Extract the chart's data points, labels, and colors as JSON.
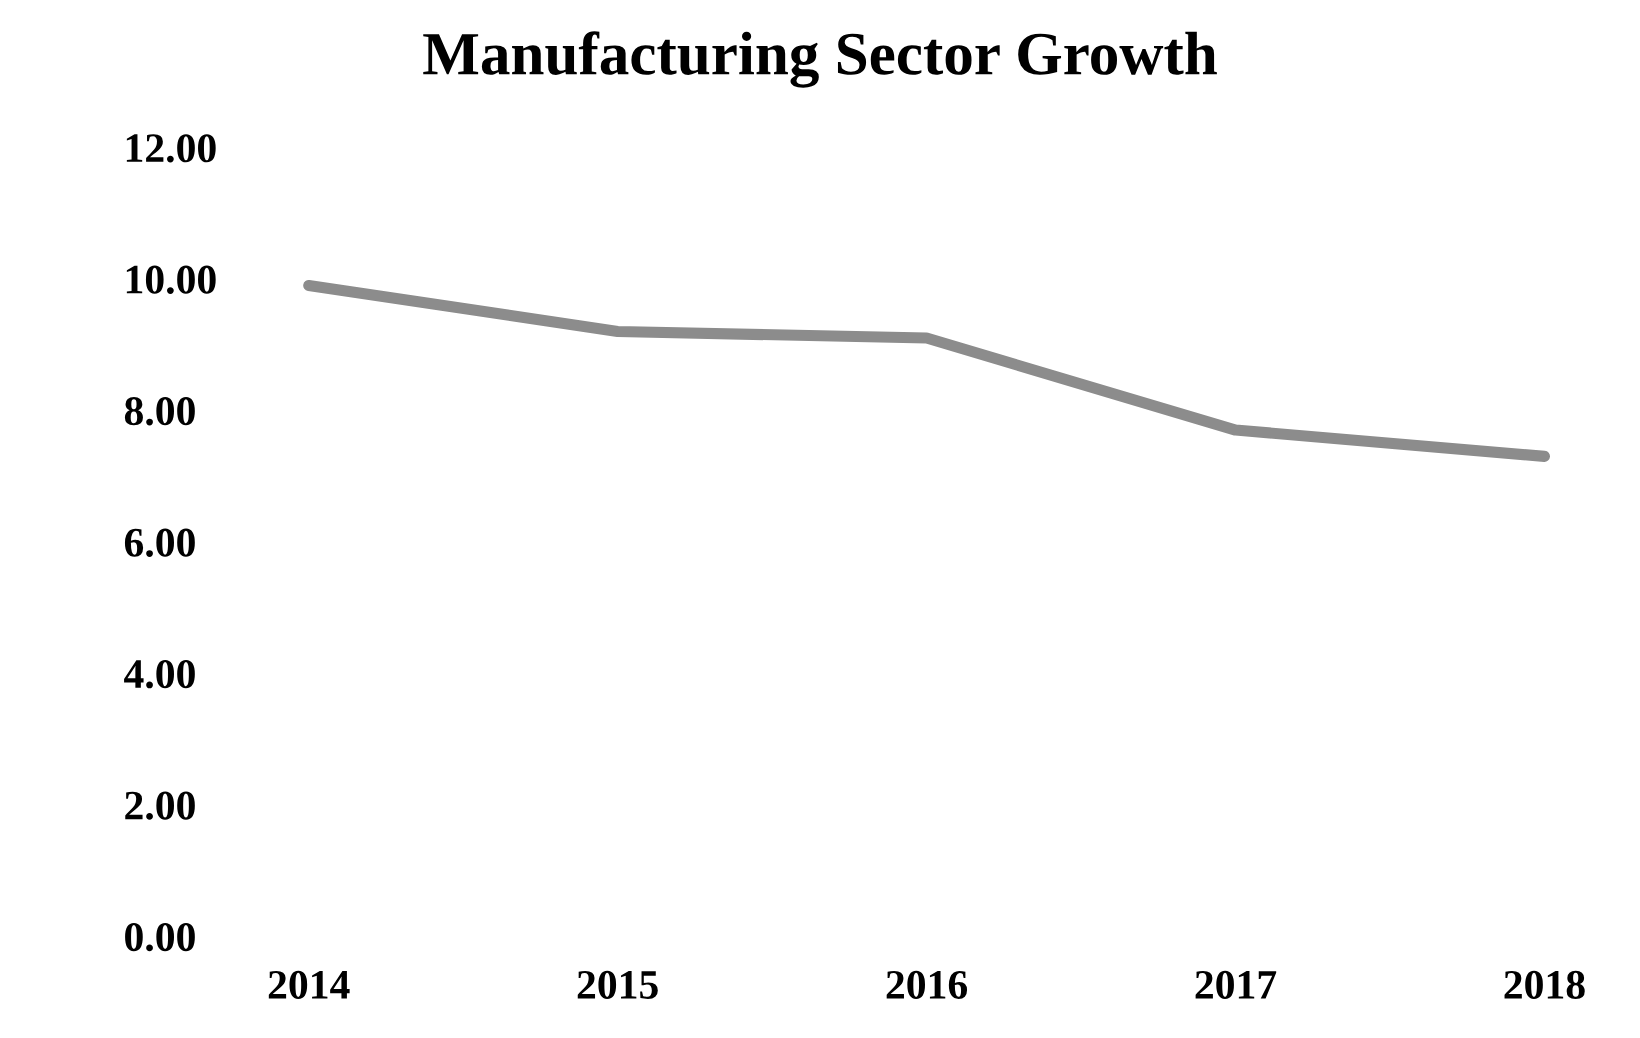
{
  "chart_data": {
    "type": "line",
    "title": "Manufacturing Sector Growth",
    "categories": [
      "2014",
      "2015",
      "2016",
      "2017",
      "2018"
    ],
    "series": [
      {
        "color": "#8c8c8c",
        "values": [
          9.9,
          9.2,
          9.1,
          7.7,
          7.3
        ]
      }
    ],
    "ylim": [
      0,
      12
    ],
    "yticks": [
      {
        "value": 0,
        "label": "0.00"
      },
      {
        "value": 2,
        "label": "2.00"
      },
      {
        "value": 4,
        "label": "4.00"
      },
      {
        "value": 6,
        "label": "6.00"
      },
      {
        "value": 8,
        "label": "8.00"
      },
      {
        "value": 10,
        "label": "10.00"
      },
      {
        "value": 12,
        "label": "12.00"
      }
    ],
    "grid": false,
    "legend": false
  }
}
